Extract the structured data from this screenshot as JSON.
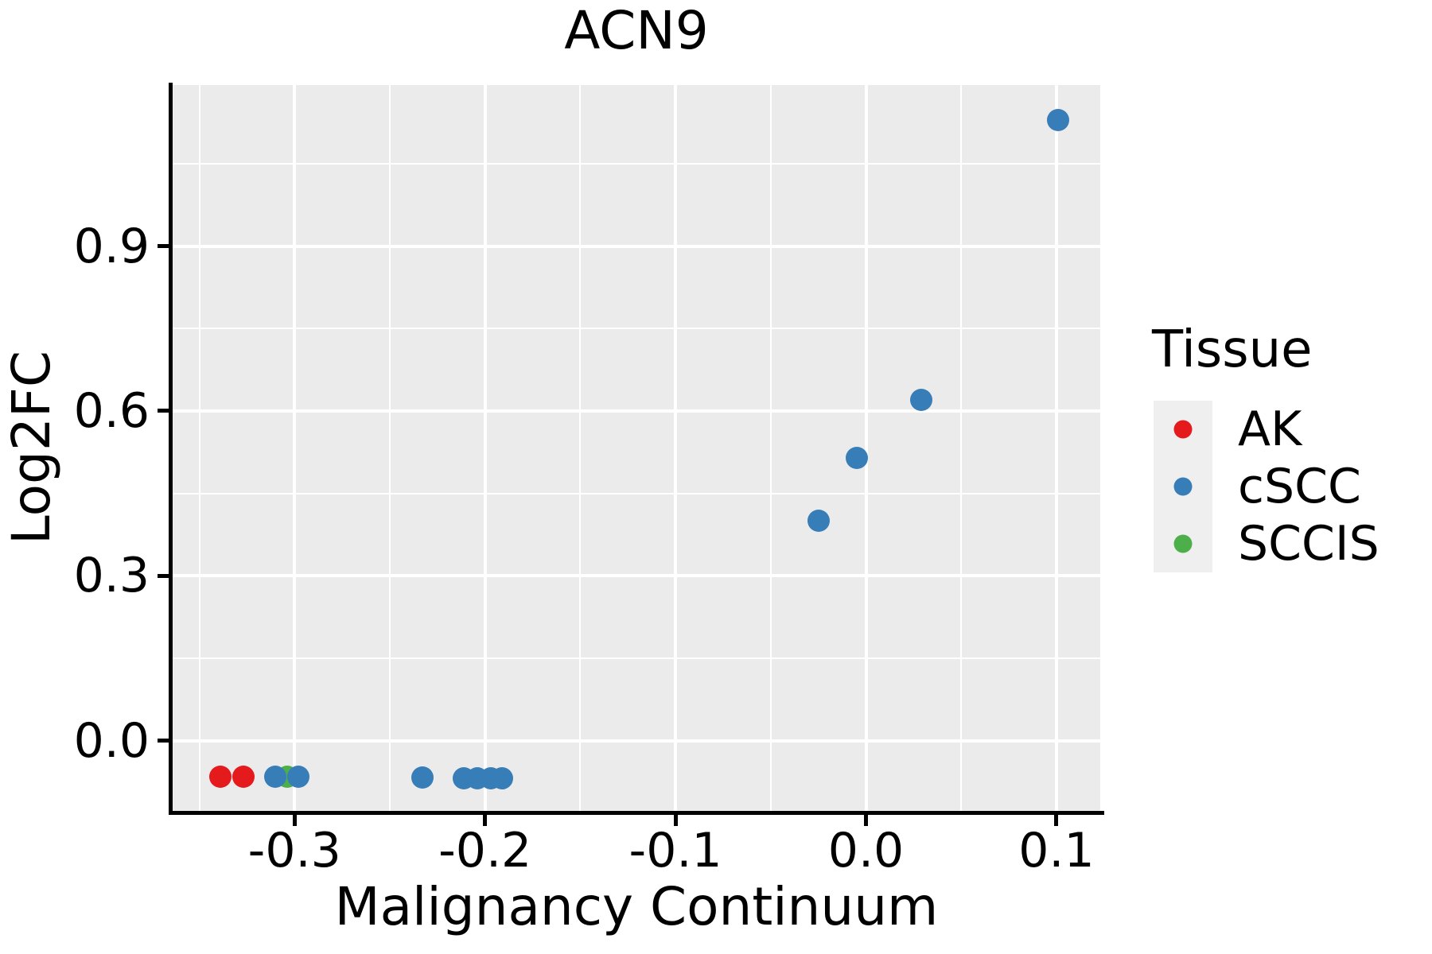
{
  "chart_data": {
    "type": "scatter",
    "title": "ACN9",
    "xlabel": "Malignancy Continuum",
    "ylabel": "Log2FC",
    "xlim": [
      -0.364,
      0.123
    ],
    "ylim": [
      -0.128,
      1.193
    ],
    "x_ticks": [
      -0.3,
      -0.2,
      -0.1,
      0.0,
      0.1
    ],
    "x_tick_labels": [
      "-0.3",
      "-0.2",
      "-0.1",
      "0.0",
      "0.1"
    ],
    "y_ticks": [
      0.0,
      0.3,
      0.6,
      0.9
    ],
    "y_tick_labels": [
      "0.0",
      "0.3",
      "0.6",
      "0.9"
    ],
    "x_minor_ticks": [
      -0.35,
      -0.25,
      -0.15,
      -0.05,
      0.05
    ],
    "y_minor_ticks": [
      0.15,
      0.45,
      0.75,
      1.05
    ],
    "grid": true,
    "panel_background": "#EBEBEB",
    "grid_color": "#FFFFFF",
    "axis_color": "#000000",
    "legend": {
      "title": "Tissue",
      "position": "right",
      "entries": [
        {
          "label": "AK",
          "color": "#E41A1C"
        },
        {
          "label": "cSCC",
          "color": "#377EB8"
        },
        {
          "label": "SCCIS",
          "color": "#4DAF4A"
        }
      ]
    },
    "series": [
      {
        "name": "AK",
        "color": "#E41A1C",
        "points": [
          [
            -0.339,
            -0.066
          ],
          [
            -0.327,
            -0.066
          ]
        ]
      },
      {
        "name": "SCCIS",
        "color": "#4DAF4A",
        "points": [
          [
            -0.304,
            -0.066
          ]
        ]
      },
      {
        "name": "cSCC",
        "color": "#377EB8",
        "points": [
          [
            -0.31,
            -0.066
          ],
          [
            -0.298,
            -0.066
          ],
          [
            -0.233,
            -0.067
          ],
          [
            -0.211,
            -0.068
          ],
          [
            -0.204,
            -0.068
          ],
          [
            -0.197,
            -0.068
          ],
          [
            -0.191,
            -0.068
          ],
          [
            -0.025,
            0.4
          ],
          [
            -0.005,
            0.515
          ],
          [
            0.029,
            0.62
          ],
          [
            0.101,
            1.13
          ]
        ]
      }
    ]
  }
}
